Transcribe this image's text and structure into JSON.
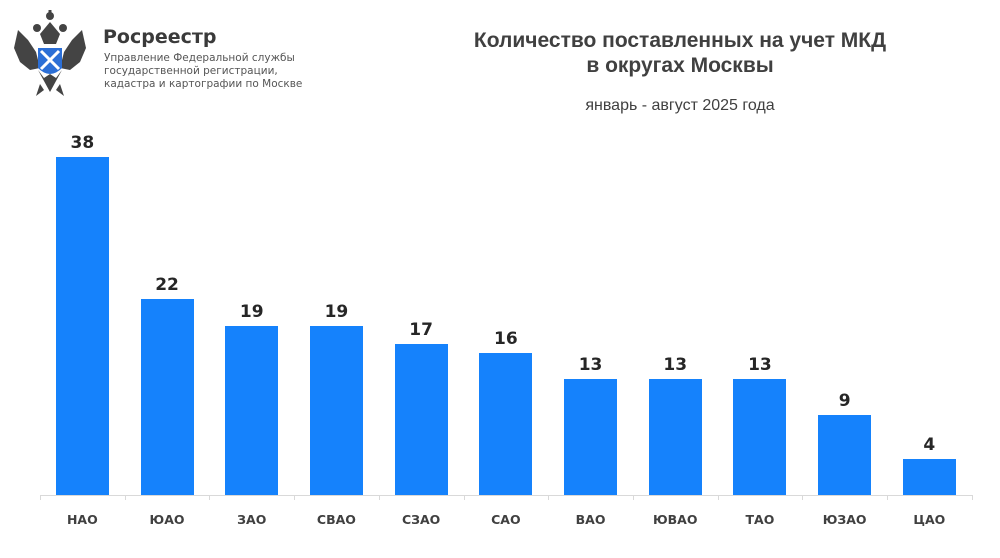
{
  "header": {
    "brand_name": "Росреестр",
    "brand_subtitle_lines": [
      "Управление Федеральной службы",
      "государственной регистрации,",
      "кадастра и картографии по Москве"
    ],
    "logo_icon": "double-headed-eagle-emblem-icon"
  },
  "chart": {
    "title_line1": "Количество поставленных на учет МКД",
    "title_line2": "в округах Москвы",
    "subtitle": "январь - август 2025 года",
    "bar_color": "#1582fc"
  },
  "chart_data": {
    "type": "bar",
    "title": "Количество поставленных на учет МКД в округах Москвы",
    "subtitle": "январь - август 2025 года",
    "categories": [
      "НАО",
      "ЮАО",
      "ЗАО",
      "СВАО",
      "СЗАО",
      "САО",
      "ВАО",
      "ЮВАО",
      "ТАО",
      "ЮЗАО",
      "ЦАО"
    ],
    "values": [
      38,
      22,
      19,
      19,
      17,
      16,
      13,
      13,
      13,
      9,
      4
    ],
    "xlabel": "",
    "ylabel": "",
    "ylim": [
      0,
      40
    ],
    "grid": false,
    "legend": "none",
    "data_labels": true
  }
}
